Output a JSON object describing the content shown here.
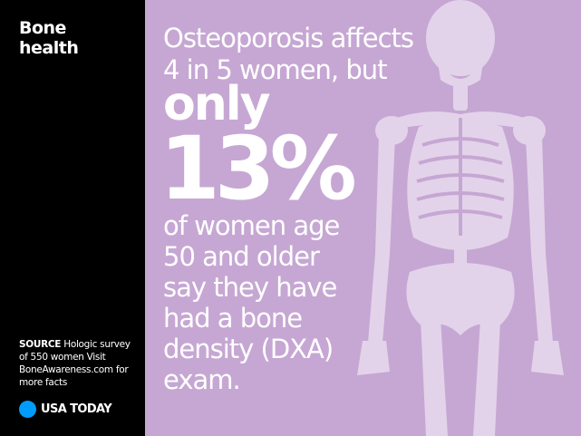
{
  "sidebar": {
    "title_line1": "Bone",
    "title_line2": "health",
    "source_label": "SOURCE",
    "source_text": " Hologic survey of 550 women Visit BoneAwareness.com for more facts",
    "logo_text": "USA TODAY",
    "logo_color": "#009bff",
    "background_color": "#000000"
  },
  "main": {
    "background_color": "#c6a7d3",
    "line1": "Osteoporosis affects",
    "line2": "4 in 5 women, but",
    "emphasis": "only",
    "stat": "13%",
    "rest_lines": [
      "of women age",
      "50 and older",
      "say they have",
      "had a bone",
      "density (DXA)",
      "exam."
    ],
    "illustration": "skeleton-icon"
  }
}
